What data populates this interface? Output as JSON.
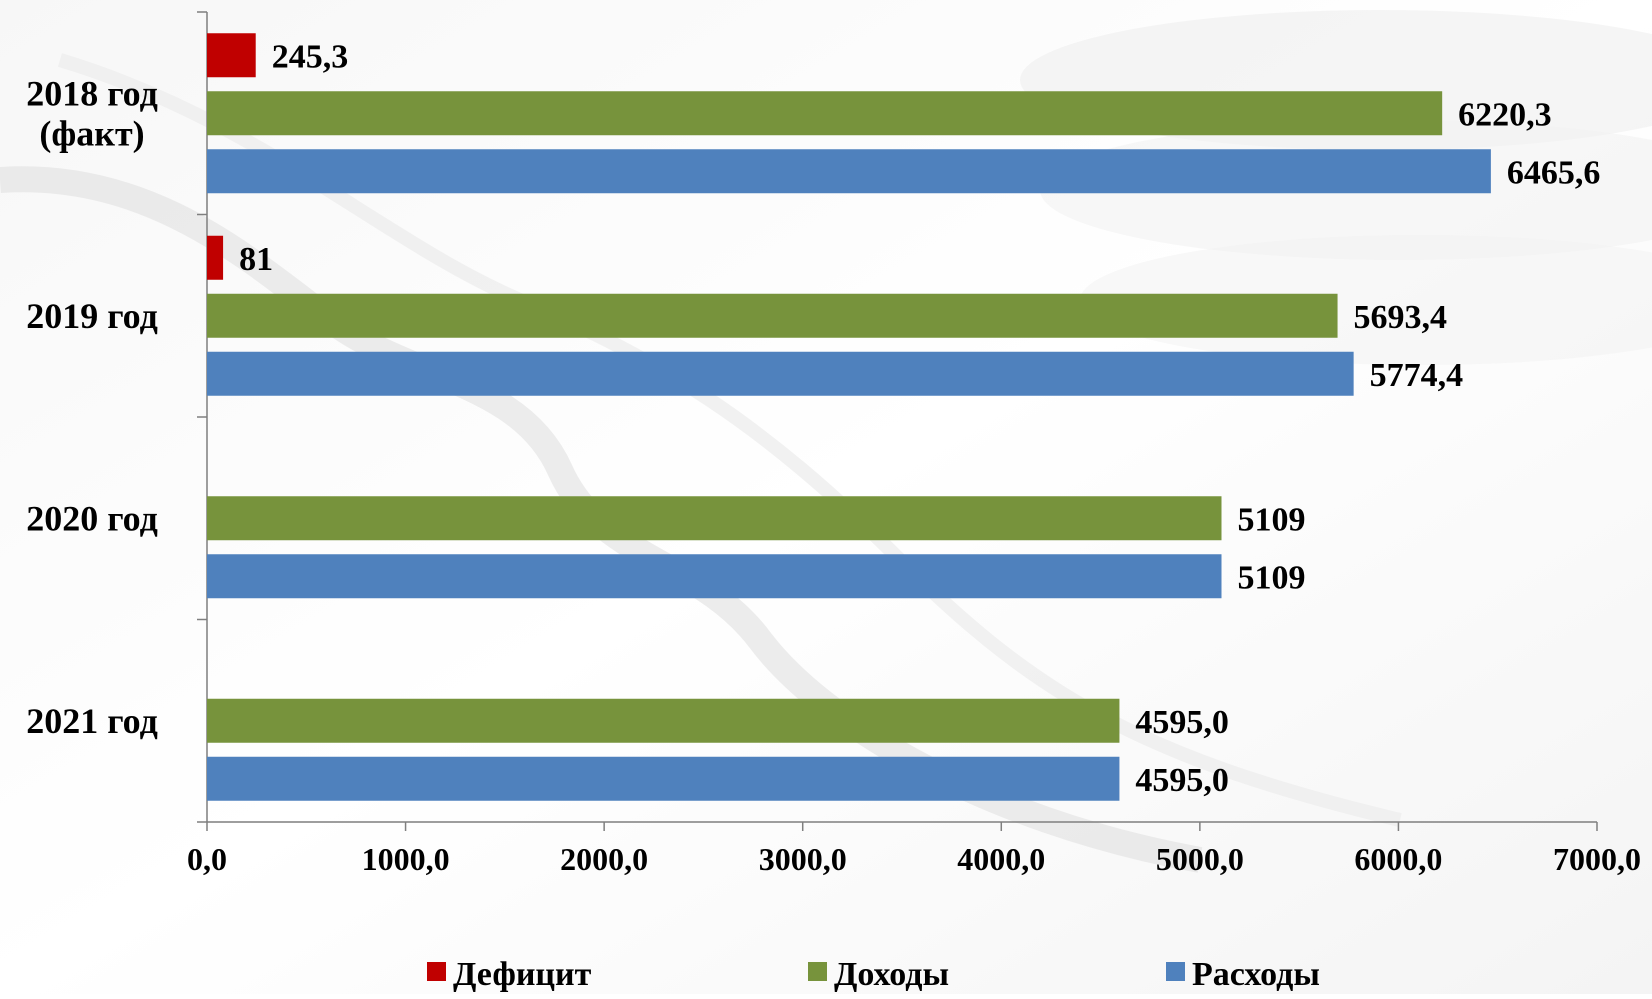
{
  "chart_data": {
    "type": "bar",
    "orientation": "horizontal",
    "categories": [
      "2018 год (факт)",
      "2019 год",
      "2020 год",
      "2021 год"
    ],
    "category_lines": [
      [
        "2018 год",
        "(факт)"
      ],
      [
        "2019 год"
      ],
      [
        "2020 год"
      ],
      [
        "2021 год"
      ]
    ],
    "series": [
      {
        "name": "Дефицит",
        "color": "#c00000",
        "values": [
          245.3,
          81,
          null,
          null
        ],
        "labels": [
          "245,3",
          "81",
          "",
          ""
        ]
      },
      {
        "name": "Доходы",
        "color": "#77933c",
        "values": [
          6220.3,
          5693.4,
          5109,
          4595.0
        ],
        "labels": [
          "6220,3",
          "5693,4",
          "5109",
          "4595,0"
        ]
      },
      {
        "name": "Расходы",
        "color": "#4f81bd",
        "values": [
          6465.6,
          5774.4,
          5109,
          4595.0
        ],
        "labels": [
          "6465,6",
          "5774,4",
          "5109",
          "4595,0"
        ]
      }
    ],
    "x_ticks": [
      0,
      1000,
      2000,
      3000,
      4000,
      5000,
      6000,
      7000
    ],
    "x_tick_labels": [
      "0,0",
      "1000,0",
      "2000,0",
      "3000,0",
      "4000,0",
      "5000,0",
      "6000,0",
      "7000,0"
    ],
    "xlim": [
      0,
      7000
    ],
    "grid": false,
    "legend_position": "bottom",
    "title": "",
    "xlabel": "",
    "ylabel": ""
  }
}
